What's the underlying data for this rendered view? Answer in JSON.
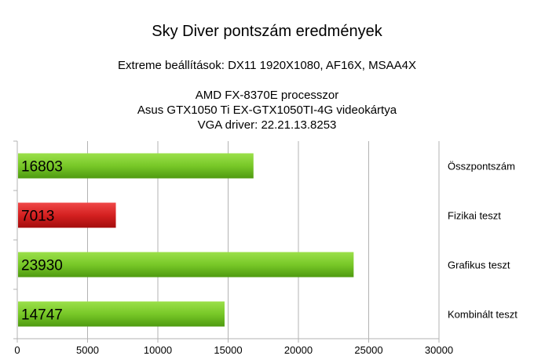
{
  "chart_data": {
    "type": "bar",
    "orientation": "horizontal",
    "title": "Sky Diver pontszám eredmények",
    "subtitle_lines": [
      "Extreme beállítások: DX11 1920X1080, AF16X, MSAA4X",
      "AMD FX-8370E processzor",
      "Asus GTX1050 Ti EX-GTX1050TI-4G videokártya",
      "VGA driver: 22.21.13.8253"
    ],
    "categories": [
      "Összpontszám",
      "Fizikai teszt",
      "Grafikus teszt",
      "Kombinált teszt"
    ],
    "values": [
      16803,
      7013,
      23930,
      14747
    ],
    "value_labels": [
      "16803",
      "7013",
      "23930",
      "14747"
    ],
    "bar_colors": [
      "#78c828",
      "#d42020",
      "#78c828",
      "#78c828"
    ],
    "xlim": [
      0,
      30000
    ],
    "xticks": [
      0,
      5000,
      10000,
      15000,
      20000,
      25000,
      30000
    ],
    "xtick_labels": [
      "0",
      "5000",
      "10000",
      "15000",
      "20000",
      "25000",
      "30000"
    ],
    "grid": true,
    "legend": "none"
  }
}
